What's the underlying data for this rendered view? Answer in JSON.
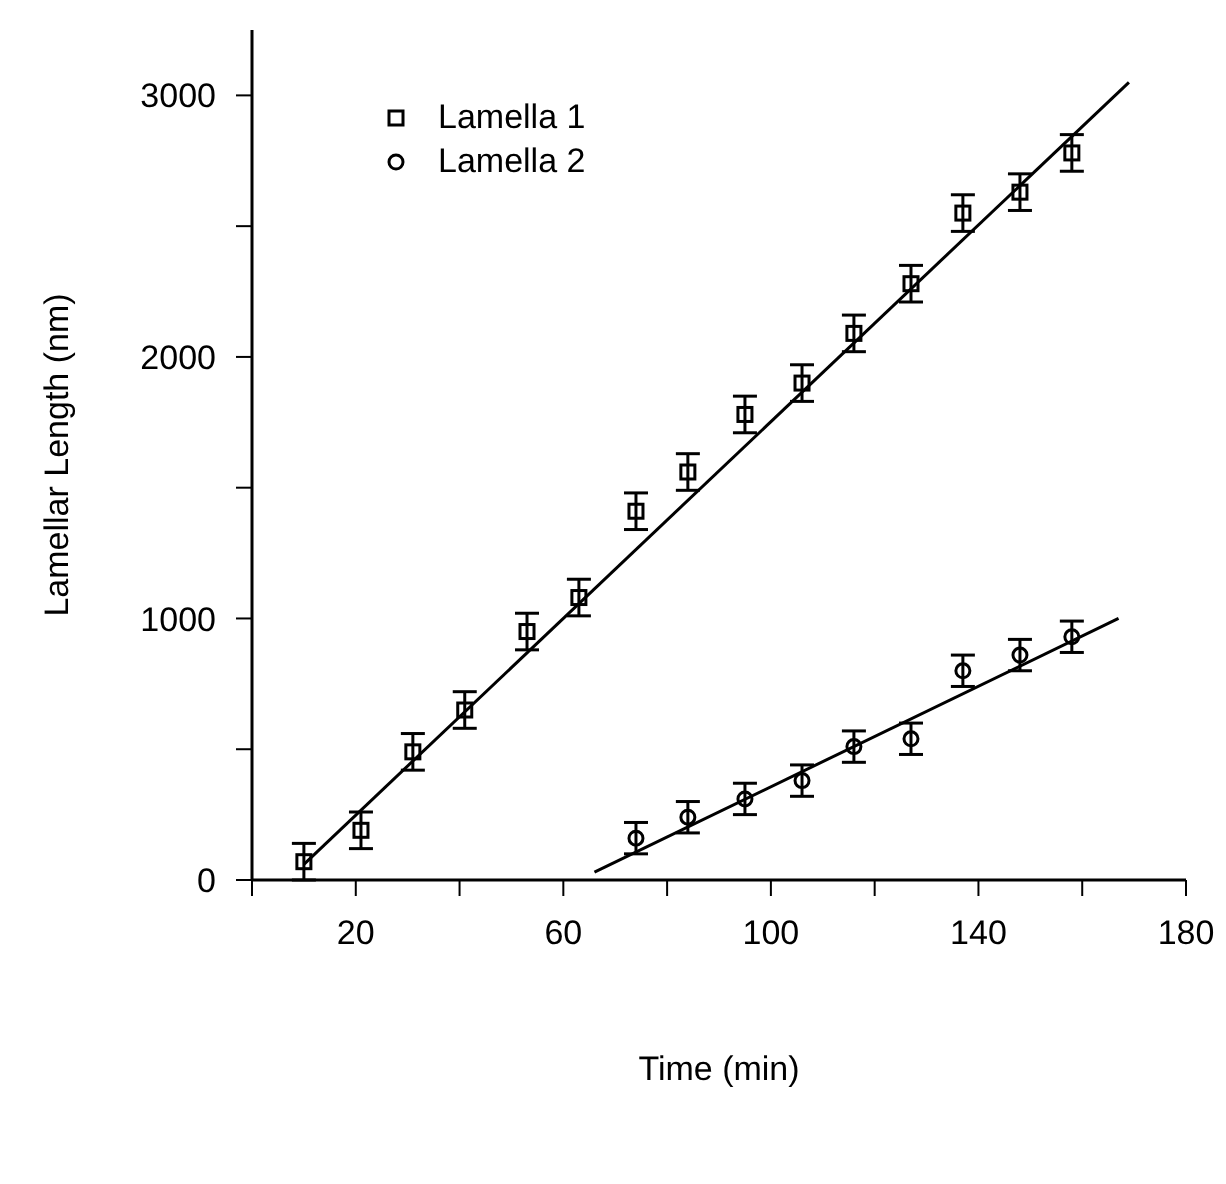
{
  "chart_data": {
    "type": "scatter",
    "xlabel": "Time (min)",
    "ylabel": "Lamellar  Length (nm)",
    "legend": "top left",
    "xlim": [
      0,
      180
    ],
    "ylim": [
      0,
      3250
    ],
    "xticks": [
      {
        "value": 0,
        "label": null
      },
      20,
      {
        "value": 40,
        "label": null
      },
      60,
      {
        "value": 80,
        "label": null
      },
      100,
      {
        "value": 120,
        "label": null
      },
      140,
      {
        "value": 160,
        "label": null
      },
      180
    ],
    "yticks": [
      0,
      {
        "value": 500,
        "label": null
      },
      1000,
      {
        "value": 1500,
        "label": null
      },
      2000,
      {
        "value": 2500,
        "label": null
      },
      3000
    ],
    "series": [
      {
        "name": "Lamella 1",
        "color": "#000000",
        "marker": "square",
        "x": [
          10,
          21,
          31,
          41,
          53,
          63,
          74,
          84,
          95,
          106,
          116,
          127,
          137,
          148,
          158
        ],
        "values": [
          70,
          190,
          490,
          650,
          950,
          1080,
          1410,
          1560,
          1780,
          1900,
          2090,
          2280,
          2550,
          2630,
          2780
        ],
        "errors": [
          70,
          70,
          70,
          70,
          70,
          70,
          70,
          70,
          70,
          70,
          70,
          70,
          70,
          70,
          70
        ]
      },
      {
        "name": "Lamella 2",
        "color": "#000000",
        "marker": "circle",
        "x": [
          74,
          84,
          95,
          106,
          116,
          127,
          137,
          148,
          158
        ],
        "values": [
          160,
          240,
          310,
          380,
          510,
          540,
          800,
          860,
          930
        ],
        "errors": [
          60,
          60,
          60,
          60,
          60,
          60,
          60,
          60,
          60
        ]
      },
      {
        "type": "line",
        "color": "#000000",
        "marker": "none",
        "x": [
          10,
          169
        ],
        "values": [
          60,
          3050
        ]
      },
      {
        "type": "line",
        "color": "#000000",
        "marker": "none",
        "x": [
          66,
          167
        ],
        "values": [
          30,
          1000
        ]
      }
    ]
  }
}
